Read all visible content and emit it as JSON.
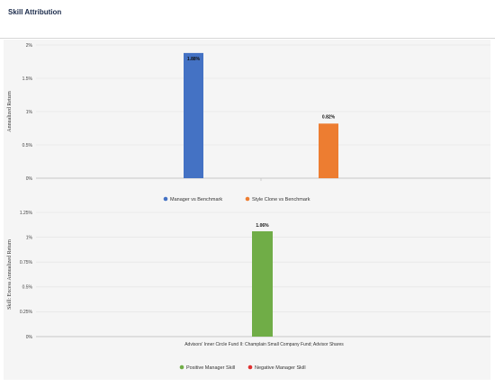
{
  "page": {
    "title": "Skill Attribution"
  },
  "chart_data": [
    {
      "type": "bar",
      "ylabel": "Annualized Return",
      "ylim": [
        0,
        2
      ],
      "yticks": [
        "0%",
        "0.5%",
        "1%",
        "1.5%",
        "2%"
      ],
      "ytick_values": [
        0,
        0.5,
        1,
        1.5,
        2
      ],
      "series": [
        {
          "name": "Manager vs Benchmark",
          "value": 1.88,
          "label": "1.88%",
          "color": "#4472c4"
        },
        {
          "name": "Style Clone vs Benchmark",
          "value": 0.82,
          "label": "0.82%",
          "color": "#ed7d31"
        }
      ],
      "legend_position": "bottom"
    },
    {
      "type": "bar",
      "ylabel": "Skill: Excess Annualized Return",
      "ylim": [
        0,
        1.25
      ],
      "yticks": [
        "0%",
        "0.25%",
        "0.5%",
        "0.75%",
        "1%",
        "1.25%"
      ],
      "ytick_values": [
        0,
        0.25,
        0.5,
        0.75,
        1,
        1.25
      ],
      "categories": [
        "Advisors' Inner Circle Fund II: Champlain Small Company Fund; Advisor Shares"
      ],
      "series": [
        {
          "name": "Positive Manager Skill",
          "value": 1.06,
          "label": "1.06%",
          "color": "#70ad47"
        }
      ],
      "legend": [
        {
          "name": "Positive Manager Skill",
          "color": "#70ad47"
        },
        {
          "name": "Negative Manager Skill",
          "color": "#e03030"
        }
      ],
      "legend_position": "bottom"
    }
  ]
}
